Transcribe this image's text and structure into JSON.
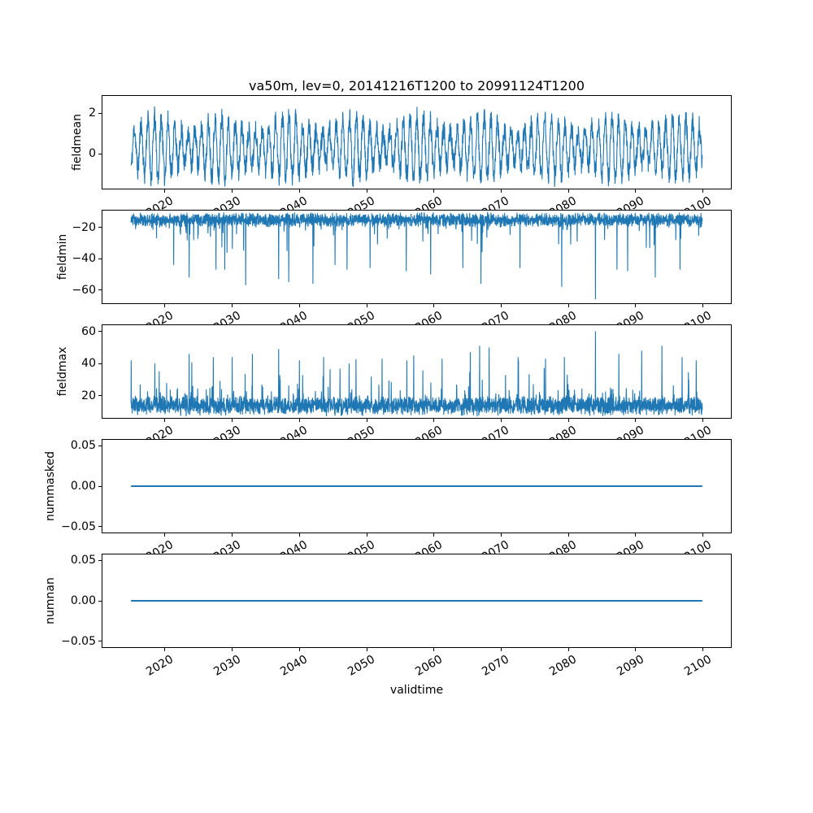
{
  "chart_data": {
    "type": "line",
    "title": "va50m, lev=0, 20141216T1200 to 20991124T1200",
    "xlabel": "validtime",
    "line_color": "#1f77b4",
    "background_color": "#ffffff",
    "grid": false,
    "legend": null,
    "x_axis": {
      "lim": [
        2010.71,
        2104.15
      ],
      "ticks": [
        2020,
        2030,
        2040,
        2050,
        2060,
        2070,
        2080,
        2090,
        2100
      ],
      "tick_labels": [
        "2020",
        "2030",
        "2040",
        "2050",
        "2060",
        "2070",
        "2080",
        "2090",
        "2100"
      ],
      "tick_rotation_deg": 30
    },
    "data_x_start": 2014.96,
    "data_x_end": 2099.9,
    "subplots": [
      {
        "ylabel": "fieldmean",
        "ylim": [
          -1.7,
          2.85
        ],
        "yticks": [
          {
            "v": 0,
            "label": "0"
          },
          {
            "v": 2,
            "label": "2"
          }
        ],
        "series": {
          "kind": "seasonal",
          "n": 2600,
          "seed": 11,
          "x_start": 2014.96,
          "x_end": 2099.9,
          "mean": 0.3,
          "seasonal_amp": 1.15,
          "mod_amp": 0.3,
          "mod_period": 9.7,
          "noise": 0.55,
          "clip_min": -1.65,
          "clip_max": 2.62
        }
      },
      {
        "ylabel": "fieldmin",
        "ylim": [
          -68.5,
          -9.2
        ],
        "yticks": [
          {
            "v": -60,
            "label": "−60"
          },
          {
            "v": -40,
            "label": "−40"
          },
          {
            "v": -20,
            "label": "−20"
          }
        ],
        "series": {
          "kind": "spiky",
          "direction": -1,
          "n": 3000,
          "seed": 22,
          "x_start": 2014.96,
          "x_end": 2099.9,
          "base": -11.8,
          "band": 6.5,
          "noise": 1.8,
          "spike_prob": 0.055,
          "spike_scale": 5.5,
          "clip": -47,
          "events": [
            [
              2021.3,
              -44
            ],
            [
              2023.6,
              -52
            ],
            [
              2027.6,
              -47
            ],
            [
              2032.0,
              -57
            ],
            [
              2036.9,
              -53
            ],
            [
              2038.4,
              -55
            ],
            [
              2042.0,
              -56
            ],
            [
              2045.3,
              -44
            ],
            [
              2050.5,
              -46
            ],
            [
              2055.9,
              -48
            ],
            [
              2059.5,
              -50
            ],
            [
              2064.3,
              -46
            ],
            [
              2067.0,
              -56
            ],
            [
              2072.8,
              -46
            ],
            [
              2079.0,
              -58
            ],
            [
              2084.0,
              -66
            ],
            [
              2087.2,
              -47
            ],
            [
              2088.8,
              -48
            ],
            [
              2092.9,
              -52
            ],
            [
              2096.6,
              -47
            ]
          ]
        }
      },
      {
        "ylabel": "fieldmax",
        "ylim": [
          6.3,
          63.8
        ],
        "yticks": [
          {
            "v": 20,
            "label": "20"
          },
          {
            "v": 40,
            "label": "40"
          },
          {
            "v": 60,
            "label": "60"
          }
        ],
        "series": {
          "kind": "spiky",
          "direction": 1,
          "n": 3000,
          "seed": 33,
          "x_start": 2014.96,
          "x_end": 2099.9,
          "base": 9.5,
          "band": 8.5,
          "noise": 2.4,
          "spike_prob": 0.1,
          "spike_scale": 5.5,
          "clip": 44,
          "events": [
            [
              2015.0,
              42
            ],
            [
              2018.5,
              40
            ],
            [
              2023.6,
              46
            ],
            [
              2027.2,
              44
            ],
            [
              2030.0,
              44
            ],
            [
              2033.0,
              46
            ],
            [
              2036.9,
              49
            ],
            [
              2040.0,
              42
            ],
            [
              2043.6,
              44
            ],
            [
              2047.4,
              40
            ],
            [
              2052.3,
              43
            ],
            [
              2057.0,
              45
            ],
            [
              2061.2,
              43
            ],
            [
              2065.4,
              47
            ],
            [
              2066.8,
              51
            ],
            [
              2068.2,
              50
            ],
            [
              2072.5,
              44
            ],
            [
              2076.6,
              43
            ],
            [
              2079.4,
              44
            ],
            [
              2084.0,
              60
            ],
            [
              2087.5,
              46
            ],
            [
              2090.9,
              48
            ],
            [
              2093.9,
              51
            ],
            [
              2096.9,
              44
            ],
            [
              2099.0,
              42
            ]
          ]
        }
      },
      {
        "ylabel": "nummasked",
        "ylim": [
          -0.0575,
          0.0575
        ],
        "yticks": [
          {
            "v": -0.05,
            "label": "−0.05"
          },
          {
            "v": 0,
            "label": "0.00"
          },
          {
            "v": 0.05,
            "label": "0.05"
          }
        ],
        "series": {
          "kind": "constant",
          "value": 0.0,
          "n": 2,
          "x_start": 2014.96,
          "x_end": 2099.9
        }
      },
      {
        "ylabel": "numnan",
        "ylim": [
          -0.0575,
          0.0575
        ],
        "yticks": [
          {
            "v": -0.05,
            "label": "−0.05"
          },
          {
            "v": 0,
            "label": "0.00"
          },
          {
            "v": 0.05,
            "label": "0.05"
          }
        ],
        "series": {
          "kind": "constant",
          "value": 0.0,
          "n": 2,
          "x_start": 2014.96,
          "x_end": 2099.9
        }
      }
    ]
  }
}
